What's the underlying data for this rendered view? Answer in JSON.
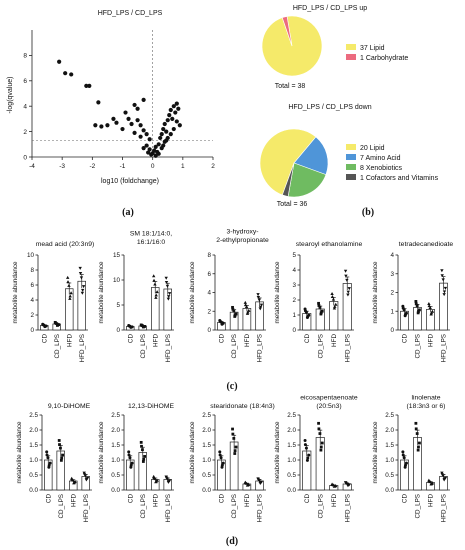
{
  "panel_labels": {
    "a": "(a)",
    "b": "(b)",
    "c": "(c)",
    "d": "(d)"
  },
  "volcano": {
    "title": "HFD_LPS / CD_LPS",
    "xlabel": "log10 (foldchange)",
    "ylabel": "-log(qvalue)",
    "xticks": [
      "-4",
      "-3",
      "-2",
      "-1",
      "0",
      "1",
      "2"
    ],
    "yticks": [
      "0",
      "2",
      "4",
      "6",
      "8"
    ]
  },
  "pies": {
    "up": {
      "title": "HFD_LPS / CD_LPS up",
      "total": "Total = 38",
      "legend": [
        "37 Lipid",
        "1 Carbohydrate"
      ]
    },
    "down": {
      "title": "HFD_LPS / CD_LPS down",
      "total": "Total = 36",
      "legend": [
        "20 Lipid",
        "7 Amino Acid",
        "8 Xenobiotics",
        "1 Cofactors and Vitamins"
      ]
    }
  },
  "metabolite_ylabel": "metabolite abundance",
  "groups": [
    "CD",
    "CD_LPS",
    "HFD",
    "HFD_LPS"
  ],
  "chart_data": [
    {
      "type": "scatter",
      "title": "HFD_LPS / CD_LPS",
      "xlabel": "log10 (foldchange)",
      "ylabel": "-log(qvalue)",
      "xlim": [
        -4,
        2
      ],
      "ylim": [
        0,
        10
      ],
      "threshold_y": 1.3,
      "points": [
        [
          -3.1,
          7.5
        ],
        [
          -2.9,
          6.6
        ],
        [
          -2.7,
          6.5
        ],
        [
          -2.2,
          5.6
        ],
        [
          -2.1,
          5.6
        ],
        [
          -1.8,
          4.3
        ],
        [
          -1.9,
          2.5
        ],
        [
          -1.7,
          2.4
        ],
        [
          -1.5,
          2.5
        ],
        [
          -1.3,
          3.0
        ],
        [
          -1.2,
          2.7
        ],
        [
          -1.0,
          2.2
        ],
        [
          -0.9,
          3.5
        ],
        [
          -0.8,
          3.0
        ],
        [
          -0.7,
          2.6
        ],
        [
          -0.6,
          4.1
        ],
        [
          -0.5,
          3.8
        ],
        [
          -0.5,
          2.9
        ],
        [
          -0.4,
          2.5
        ],
        [
          -0.3,
          4.5
        ],
        [
          -0.3,
          2.1
        ],
        [
          -0.2,
          1.8
        ],
        [
          -0.1,
          1.4
        ],
        [
          -0.4,
          1.6
        ],
        [
          -0.6,
          1.9
        ],
        [
          -0.2,
          0.9
        ],
        [
          -0.1,
          0.6
        ],
        [
          0.0,
          0.3
        ],
        [
          0.05,
          0.5
        ],
        [
          0.1,
          0.8
        ],
        [
          -0.05,
          0.2
        ],
        [
          0.15,
          0.4
        ],
        [
          0.2,
          1.0
        ],
        [
          0.25,
          1.5
        ],
        [
          0.3,
          1.8
        ],
        [
          0.35,
          2.2
        ],
        [
          0.4,
          2.6
        ],
        [
          0.45,
          2.0
        ],
        [
          0.5,
          2.9
        ],
        [
          0.55,
          3.3
        ],
        [
          0.6,
          3.7
        ],
        [
          0.65,
          3.0
        ],
        [
          0.7,
          4.0
        ],
        [
          0.75,
          3.5
        ],
        [
          0.8,
          4.2
        ],
        [
          0.85,
          3.8
        ],
        [
          0.9,
          2.5
        ],
        [
          0.5,
          1.5
        ],
        [
          0.6,
          1.8
        ],
        [
          0.3,
          0.7
        ],
        [
          0.4,
          1.2
        ],
        [
          0.7,
          2.2
        ],
        [
          0.8,
          2.8
        ],
        [
          -0.3,
          0.7
        ],
        [
          0.1,
          0.1
        ],
        [
          -0.15,
          0.35
        ],
        [
          0.2,
          0.25
        ],
        [
          0.35,
          0.9
        ],
        [
          0.45,
          1.3
        ]
      ]
    },
    {
      "type": "pie",
      "title": "HFD_LPS / CD_LPS up",
      "total": 38,
      "slices": [
        {
          "label": "37 Lipid",
          "value": 37,
          "color": "#f5ea6a"
        },
        {
          "label": "1 Carbohydrate",
          "value": 1,
          "color": "#ec6b7f"
        }
      ]
    },
    {
      "type": "pie",
      "title": "HFD_LPS / CD_LPS down",
      "total": 36,
      "slices": [
        {
          "label": "20 Lipid",
          "value": 20,
          "color": "#f5ea6a"
        },
        {
          "label": "7 Amino Acid",
          "value": 7,
          "color": "#4f95d8"
        },
        {
          "label": "8 Xenobiotics",
          "value": 8,
          "color": "#6fbb61"
        },
        {
          "label": "1 Cofactors and Vitamins",
          "value": 1,
          "color": "#555555"
        }
      ]
    },
    {
      "type": "bar",
      "title": "mead acid (20:3n9)",
      "ylabel": "metabolite abundance",
      "categories": [
        "CD",
        "CD_LPS",
        "HFD",
        "HFD_LPS"
      ],
      "values": [
        0.6,
        0.8,
        5.5,
        6.5
      ],
      "ylim": [
        0,
        10
      ],
      "yticks": [
        "0",
        "2",
        "4",
        "6",
        "8",
        "10"
      ]
    },
    {
      "type": "bar",
      "title": "SM 18:1/14:0,\n16:1/16:0",
      "ylabel": "metabolite abundance",
      "categories": [
        "CD",
        "CD_LPS",
        "HFD",
        "HFD_LPS"
      ],
      "values": [
        0.7,
        0.8,
        8.5,
        8.2
      ],
      "ylim": [
        0,
        15
      ],
      "yticks": [
        "0",
        "5",
        "10",
        "15"
      ]
    },
    {
      "type": "bar",
      "title": "3-hydroxy-\n2-ethylpropionate",
      "ylabel": "metabolite abundance",
      "categories": [
        "CD",
        "CD_LPS",
        "HFD",
        "HFD_LPS"
      ],
      "values": [
        0.8,
        1.9,
        2.3,
        3.0
      ],
      "ylim": [
        0,
        8
      ],
      "yticks": [
        "0",
        "2",
        "4",
        "6",
        "8"
      ]
    },
    {
      "type": "bar",
      "title": "stearoyl ethanolamine",
      "ylabel": "metabolite abundance",
      "categories": [
        "CD",
        "CD_LPS",
        "HFD",
        "HFD_LPS"
      ],
      "values": [
        1.1,
        1.4,
        1.9,
        3.1
      ],
      "ylim": [
        0,
        5
      ],
      "yticks": [
        "0",
        "1",
        "2",
        "3",
        "4",
        "5"
      ]
    },
    {
      "type": "bar",
      "title": "tetradecanedioate",
      "ylabel": "metabolite abundance",
      "categories": [
        "CD",
        "CD_LPS",
        "HFD",
        "HFD_LPS"
      ],
      "values": [
        1.0,
        1.2,
        1.1,
        2.5
      ],
      "ylim": [
        0,
        4
      ],
      "yticks": [
        "0",
        "1",
        "2",
        "3",
        "4"
      ]
    },
    {
      "type": "bar",
      "title": "9,10-DiHOME",
      "ylabel": "metabolite abundance",
      "categories": [
        "CD",
        "CD_LPS",
        "HFD",
        "HFD_LPS"
      ],
      "values": [
        1.0,
        1.3,
        0.3,
        0.45
      ],
      "ylim": [
        0,
        2.5
      ],
      "yticks": [
        "0.0",
        "0.5",
        "1.0",
        "1.5",
        "2.0",
        "2.5"
      ]
    },
    {
      "type": "bar",
      "title": "12,13-DiHOME",
      "ylabel": "metabolite abundance",
      "categories": [
        "CD",
        "CD_LPS",
        "HFD",
        "HFD_LPS"
      ],
      "values": [
        1.0,
        1.25,
        0.35,
        0.35
      ],
      "ylim": [
        0,
        2.5
      ],
      "yticks": [
        "0.0",
        "0.5",
        "1.0",
        "1.5",
        "2.0",
        "2.5"
      ]
    },
    {
      "type": "bar",
      "title": "stearidonate (18:4n3)",
      "ylabel": "metabolite abundance",
      "categories": [
        "CD",
        "CD_LPS",
        "HFD",
        "HFD_LPS"
      ],
      "values": [
        1.0,
        1.6,
        0.2,
        0.3
      ],
      "ylim": [
        0,
        2.5
      ],
      "yticks": [
        "0.0",
        "0.5",
        "1.0",
        "1.5",
        "2.0",
        "2.5"
      ]
    },
    {
      "type": "bar",
      "title": "eicosapentaenoate\n(20:5n3)",
      "ylabel": "metabolite abundance",
      "categories": [
        "CD",
        "CD_LPS",
        "HFD",
        "HFD_LPS"
      ],
      "values": [
        1.3,
        1.75,
        0.15,
        0.2
      ],
      "ylim": [
        0,
        2.5
      ],
      "yticks": [
        "0.0",
        "0.5",
        "1.0",
        "1.5",
        "2.0",
        "2.5"
      ]
    },
    {
      "type": "bar",
      "title": "linolenate\n(18:3n3 or 6)",
      "ylabel": "metabolite abundance",
      "categories": [
        "CD",
        "CD_LPS",
        "HFD",
        "HFD_LPS"
      ],
      "values": [
        1.0,
        1.75,
        0.25,
        0.45
      ],
      "ylim": [
        0,
        2.5
      ],
      "yticks": [
        "0.0",
        "0.5",
        "1.0",
        "1.5",
        "2.0",
        "2.5"
      ]
    }
  ]
}
